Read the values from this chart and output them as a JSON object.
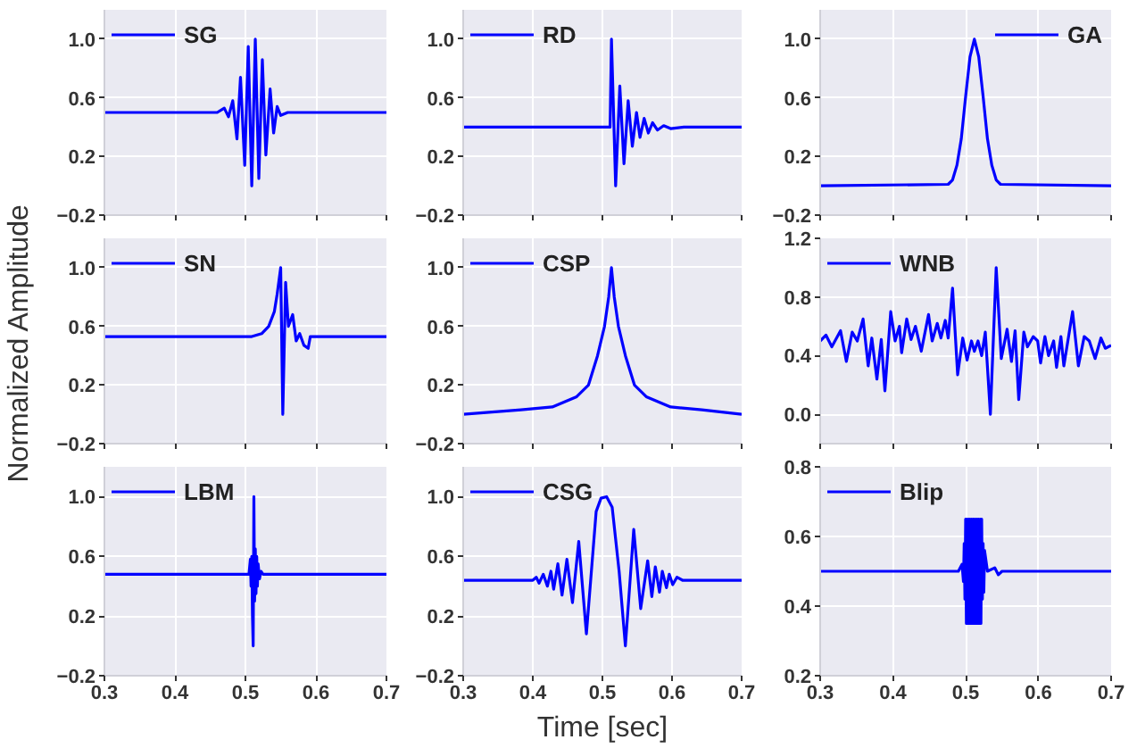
{
  "chart_data": [
    {
      "type": "line",
      "legend": "top left",
      "grid": true,
      "tick_labels": "y",
      "xlim": [
        0.3,
        0.7
      ],
      "xticks": [
        0.3,
        0.4,
        0.5,
        0.6,
        0.7
      ],
      "ylim": [
        -0.2,
        1.2
      ],
      "yticks": [
        {
          "value": -0.2,
          "label": "−0.2"
        },
        0.2,
        0.6,
        {
          "value": 1.0,
          "label": "1.0"
        }
      ],
      "series": [
        {
          "name": "SG",
          "color": "#0000ff",
          "x": [
            0.3,
            0.46,
            0.47,
            0.476,
            0.482,
            0.488,
            0.493,
            0.499,
            0.504,
            0.509,
            0.514,
            0.519,
            0.524,
            0.529,
            0.535,
            0.54,
            0.545,
            0.55,
            0.56,
            0.7
          ],
          "values": [
            0.5,
            0.5,
            0.53,
            0.47,
            0.58,
            0.32,
            0.74,
            0.14,
            0.95,
            0.0,
            1.0,
            0.05,
            0.86,
            0.21,
            0.66,
            0.36,
            0.54,
            0.48,
            0.5,
            0.5
          ]
        }
      ]
    },
    {
      "type": "line",
      "legend": "top left",
      "grid": true,
      "tick_labels": "y",
      "xlim": [
        0.3,
        0.7
      ],
      "xticks": [
        0.3,
        0.4,
        0.5,
        0.6,
        0.7
      ],
      "ylim": [
        -0.2,
        1.2
      ],
      "yticks": [
        {
          "value": -0.2,
          "label": "−0.2"
        },
        0.2,
        0.6,
        {
          "value": 1.0,
          "label": "1.0"
        }
      ],
      "series": [
        {
          "name": "RD",
          "color": "#0000ff",
          "x": [
            0.3,
            0.511,
            0.513,
            0.519,
            0.525,
            0.531,
            0.537,
            0.543,
            0.549,
            0.554,
            0.56,
            0.566,
            0.572,
            0.579,
            0.588,
            0.598,
            0.617,
            0.7
          ],
          "values": [
            0.4,
            0.4,
            1.0,
            0.0,
            0.68,
            0.15,
            0.58,
            0.27,
            0.5,
            0.33,
            0.46,
            0.36,
            0.43,
            0.38,
            0.41,
            0.39,
            0.4,
            0.4
          ]
        }
      ]
    },
    {
      "type": "line",
      "legend": "top right",
      "grid": true,
      "tick_labels": "y",
      "xlim": [
        0.3,
        0.7
      ],
      "xticks": [
        0.3,
        0.4,
        0.5,
        0.6,
        0.7
      ],
      "ylim": [
        -0.2,
        1.2
      ],
      "yticks": [
        {
          "value": -0.2,
          "label": "−0.2"
        },
        0.2,
        0.6,
        {
          "value": 1.0,
          "label": "1.0"
        }
      ],
      "series": [
        {
          "name": "GA",
          "color": "#0000ff",
          "x": [
            0.3,
            0.476,
            0.482,
            0.488,
            0.494,
            0.5,
            0.506,
            0.512,
            0.518,
            0.524,
            0.53,
            0.536,
            0.542,
            0.548,
            0.7
          ],
          "values": [
            0.0,
            0.01,
            0.04,
            0.14,
            0.32,
            0.61,
            0.88,
            1.0,
            0.88,
            0.61,
            0.32,
            0.14,
            0.04,
            0.01,
            0.0
          ]
        }
      ]
    },
    {
      "type": "line",
      "legend": "top left",
      "grid": true,
      "tick_labels": "y",
      "ylabel": "Normalized Amplitude",
      "xlim": [
        0.3,
        0.7
      ],
      "xticks": [
        0.3,
        0.4,
        0.5,
        0.6,
        0.7
      ],
      "ylim": [
        -0.2,
        1.2
      ],
      "yticks": [
        {
          "value": -0.2,
          "label": "−0.2"
        },
        0.2,
        0.6,
        {
          "value": 1.0,
          "label": "1.0"
        }
      ],
      "series": [
        {
          "name": "SN",
          "color": "#0000ff",
          "x": [
            0.3,
            0.509,
            0.523,
            0.533,
            0.541,
            0.545,
            0.55,
            0.553,
            0.557,
            0.561,
            0.567,
            0.572,
            0.577,
            0.583,
            0.589,
            0.592,
            0.7
          ],
          "values": [
            0.53,
            0.53,
            0.55,
            0.6,
            0.7,
            0.82,
            1.0,
            0.0,
            0.9,
            0.6,
            0.68,
            0.5,
            0.55,
            0.47,
            0.45,
            0.53,
            0.53
          ]
        }
      ]
    },
    {
      "type": "line",
      "legend": "top left",
      "grid": true,
      "tick_labels": "y",
      "xlim": [
        0.3,
        0.7
      ],
      "xticks": [
        0.3,
        0.4,
        0.5,
        0.6,
        0.7
      ],
      "ylim": [
        -0.2,
        1.2
      ],
      "yticks": [
        {
          "value": -0.2,
          "label": "−0.2"
        },
        0.2,
        0.6,
        {
          "value": 1.0,
          "label": "1.0"
        }
      ],
      "series": [
        {
          "name": "CSP",
          "color": "#0000ff",
          "x": [
            0.3,
            0.383,
            0.428,
            0.463,
            0.48,
            0.493,
            0.503,
            0.509,
            0.513,
            0.517,
            0.523,
            0.533,
            0.546,
            0.563,
            0.598,
            0.643,
            0.7
          ],
          "values": [
            0.0,
            0.03,
            0.05,
            0.12,
            0.2,
            0.4,
            0.6,
            0.8,
            1.0,
            0.8,
            0.6,
            0.4,
            0.2,
            0.12,
            0.05,
            0.03,
            0.0
          ]
        }
      ]
    },
    {
      "type": "line",
      "legend": "top left",
      "grid": true,
      "tick_labels": "y",
      "xlim": [
        0.3,
        0.7
      ],
      "xticks": [
        0.3,
        0.4,
        0.5,
        0.6,
        0.7
      ],
      "ylim": [
        -0.2,
        1.2
      ],
      "yticks": [
        {
          "value": 0.0,
          "label": "0.0"
        },
        0.4,
        0.8,
        1.2
      ],
      "series": [
        {
          "name": "WNB",
          "color": "#0000ff",
          "x": [
            0.3,
            0.308,
            0.316,
            0.328,
            0.336,
            0.344,
            0.351,
            0.359,
            0.366,
            0.371,
            0.378,
            0.384,
            0.389,
            0.397,
            0.403,
            0.409,
            0.412,
            0.419,
            0.425,
            0.431,
            0.439,
            0.449,
            0.454,
            0.461,
            0.466,
            0.472,
            0.476,
            0.482,
            0.489,
            0.496,
            0.502,
            0.508,
            0.512,
            0.517,
            0.522,
            0.527,
            0.534,
            0.542,
            0.549,
            0.557,
            0.563,
            0.568,
            0.573,
            0.58,
            0.585,
            0.593,
            0.599,
            0.603,
            0.609,
            0.614,
            0.621,
            0.625,
            0.631,
            0.635,
            0.647,
            0.655,
            0.663,
            0.67,
            0.678,
            0.686,
            0.692,
            0.7
          ],
          "values": [
            0.5,
            0.54,
            0.46,
            0.57,
            0.36,
            0.56,
            0.5,
            0.65,
            0.33,
            0.52,
            0.24,
            0.51,
            0.16,
            0.7,
            0.5,
            0.6,
            0.42,
            0.65,
            0.51,
            0.6,
            0.43,
            0.68,
            0.5,
            0.62,
            0.52,
            0.64,
            0.52,
            0.86,
            0.27,
            0.52,
            0.37,
            0.5,
            0.43,
            0.5,
            0.4,
            0.56,
            0.0,
            1.0,
            0.38,
            0.58,
            0.36,
            0.57,
            0.1,
            0.56,
            0.46,
            0.53,
            0.5,
            0.35,
            0.53,
            0.4,
            0.5,
            0.32,
            0.53,
            0.33,
            0.7,
            0.33,
            0.53,
            0.5,
            0.38,
            0.52,
            0.45,
            0.47
          ]
        }
      ]
    },
    {
      "type": "line",
      "legend": "top left",
      "grid": true,
      "xlim": [
        0.3,
        0.7
      ],
      "xticks": [
        0.3,
        0.4,
        0.5,
        0.6,
        0.7
      ],
      "ylim": [
        -0.2,
        1.2
      ],
      "yticks": [
        {
          "value": -0.2,
          "label": "−0.2"
        },
        0.2,
        0.6,
        {
          "value": 1.0,
          "label": "1.0"
        }
      ],
      "series": [
        {
          "name": "LBM",
          "color": "#0000ff",
          "x": [
            0.3,
            0.505,
            0.507,
            0.508,
            0.509,
            0.51,
            0.511,
            0.512,
            0.513,
            0.514,
            0.515,
            0.516,
            0.517,
            0.518,
            0.52,
            0.522,
            0.525,
            0.7
          ],
          "values": [
            0.48,
            0.48,
            0.58,
            0.4,
            0.6,
            0.2,
            0.0,
            1.0,
            0.3,
            0.65,
            0.35,
            0.6,
            0.4,
            0.55,
            0.45,
            0.5,
            0.48,
            0.48
          ]
        }
      ]
    },
    {
      "type": "line",
      "legend": "top left",
      "grid": true,
      "xlabel": "Time [sec]",
      "xlim": [
        0.3,
        0.7
      ],
      "xticks": [
        0.3,
        0.4,
        0.5,
        0.6,
        0.7
      ],
      "ylim": [
        -0.2,
        1.2
      ],
      "yticks": [
        {
          "value": -0.2,
          "label": "−0.2"
        },
        0.2,
        0.6,
        {
          "value": 1.0,
          "label": "1.0"
        }
      ],
      "series": [
        {
          "name": "CSG",
          "color": "#0000ff",
          "x": [
            0.3,
            0.4,
            0.405,
            0.409,
            0.415,
            0.421,
            0.426,
            0.43,
            0.436,
            0.442,
            0.449,
            0.457,
            0.466,
            0.477,
            0.491,
            0.498,
            0.506,
            0.514,
            0.524,
            0.533,
            0.545,
            0.555,
            0.565,
            0.571,
            0.576,
            0.582,
            0.586,
            0.592,
            0.596,
            0.601,
            0.607,
            0.615,
            0.7
          ],
          "values": [
            0.44,
            0.44,
            0.46,
            0.42,
            0.48,
            0.4,
            0.5,
            0.38,
            0.55,
            0.34,
            0.58,
            0.29,
            0.7,
            0.08,
            0.9,
            0.99,
            1.0,
            0.93,
            0.5,
            0.0,
            0.78,
            0.25,
            0.57,
            0.33,
            0.53,
            0.36,
            0.5,
            0.39,
            0.48,
            0.41,
            0.46,
            0.44,
            0.44
          ]
        }
      ]
    },
    {
      "type": "line",
      "legend": "top left",
      "grid": true,
      "xlim": [
        0.3,
        0.7
      ],
      "xticks": [
        0.3,
        0.4,
        0.5,
        0.6,
        0.7
      ],
      "ylim": [
        0.2,
        0.8
      ],
      "yticks": [
        0.2,
        0.4,
        0.6,
        0.8
      ],
      "series": [
        {
          "name": "Blip",
          "color": "#0000ff",
          "x": [
            0.3,
            0.49,
            0.495,
            0.497,
            0.498,
            0.499,
            0.5,
            0.501,
            0.502,
            0.503,
            0.504,
            0.505,
            0.506,
            0.507,
            0.508,
            0.509,
            0.51,
            0.511,
            0.512,
            0.513,
            0.514,
            0.515,
            0.516,
            0.517,
            0.518,
            0.519,
            0.52,
            0.521,
            0.522,
            0.523,
            0.524,
            0.525,
            0.526,
            0.53,
            0.54,
            0.545,
            0.55,
            0.7
          ],
          "values": [
            0.5,
            0.5,
            0.52,
            0.47,
            0.58,
            0.42,
            0.65,
            0.35,
            0.65,
            0.35,
            0.65,
            0.35,
            0.65,
            0.35,
            0.65,
            0.35,
            0.65,
            0.35,
            0.65,
            0.35,
            0.65,
            0.35,
            0.65,
            0.35,
            0.65,
            0.35,
            0.65,
            0.35,
            0.65,
            0.42,
            0.58,
            0.44,
            0.56,
            0.5,
            0.51,
            0.49,
            0.5,
            0.5
          ]
        }
      ]
    }
  ]
}
